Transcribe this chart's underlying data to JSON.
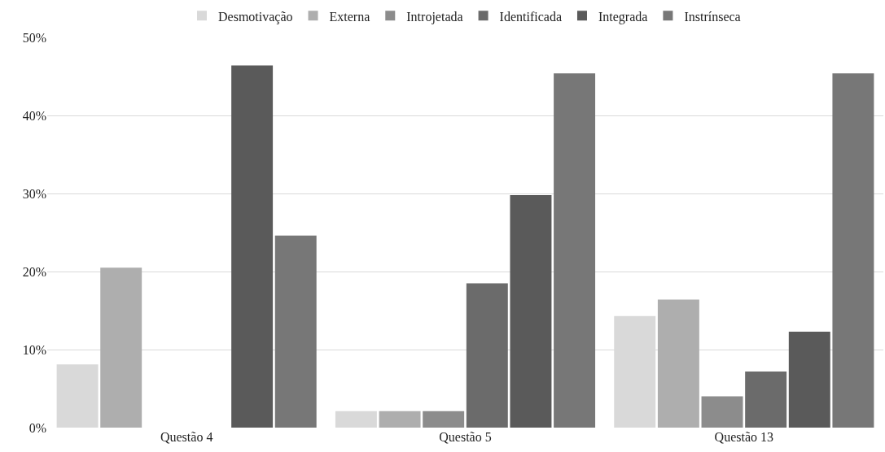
{
  "chart_data": {
    "type": "bar",
    "categories": [
      "Questão 4",
      "Questão 5",
      "Questão 13"
    ],
    "series": [
      {
        "name": "Desmotivação",
        "color": "#d9d9d9",
        "values": [
          8.1,
          2.1,
          14.3
        ]
      },
      {
        "name": "Externa",
        "color": "#aeaeae",
        "values": [
          20.5,
          2.1,
          16.4
        ]
      },
      {
        "name": "Introjetada",
        "color": "#8c8c8c",
        "values": [
          0,
          2.1,
          4.0
        ]
      },
      {
        "name": "Identificada",
        "color": "#6b6b6b",
        "values": [
          0,
          18.5,
          7.2
        ]
      },
      {
        "name": "Integrada",
        "color": "#5a5a5a",
        "values": [
          46.4,
          29.8,
          12.3
        ]
      },
      {
        "name": "Instrínseca",
        "color": "#777777",
        "values": [
          24.6,
          45.4,
          45.4
        ]
      }
    ],
    "ylim": [
      0,
      50
    ],
    "yticks": [
      {
        "value": 0,
        "label": "0%"
      },
      {
        "value": 10,
        "label": "10%"
      },
      {
        "value": 20,
        "label": "20%"
      },
      {
        "value": 30,
        "label": "30%"
      },
      {
        "value": 40,
        "label": "40%"
      },
      {
        "value": 50,
        "label": "50%"
      }
    ],
    "grid": "y",
    "legend": "top"
  }
}
